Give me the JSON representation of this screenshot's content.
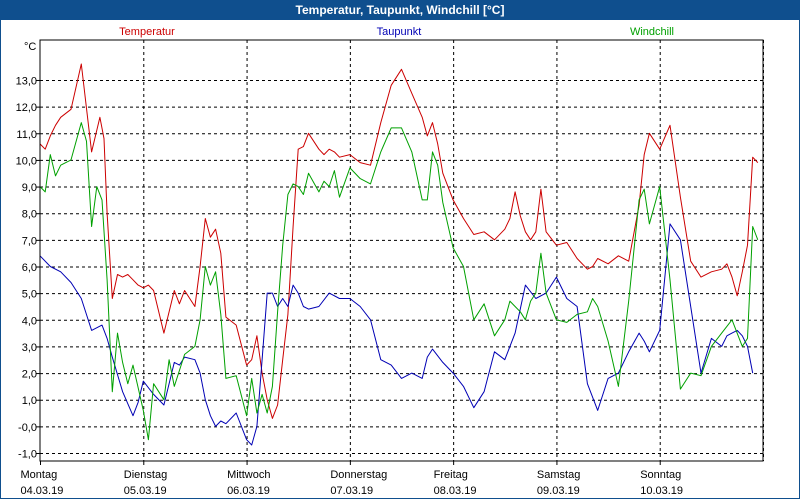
{
  "window": {
    "title": "Temperatur, Taupunkt, Windchill [°C]"
  },
  "chart_data": {
    "type": "line",
    "title": "Temperatur, Taupunkt, Windchill [°C]",
    "ylabel": "°C",
    "ylim": [
      -1.3,
      14.5
    ],
    "xlim": [
      0,
      7
    ],
    "grid": true,
    "yticks": [
      -1.0,
      0.0,
      1.0,
      2.0,
      3.0,
      4.0,
      5.0,
      6.0,
      7.0,
      8.0,
      9.0,
      10.0,
      11.0,
      12.0,
      13.0
    ],
    "ytick_labels": [
      "-1,0",
      "-0,0",
      "1,0",
      "2,0",
      "3,0",
      "4,0",
      "5,0",
      "6,0",
      "7,0",
      "8,0",
      "9,0",
      "10,0",
      "11,0",
      "12,0",
      "13,0"
    ],
    "days": [
      {
        "weekday": "Montag",
        "date": "04.03.19"
      },
      {
        "weekday": "Dienstag",
        "date": "05.03.19"
      },
      {
        "weekday": "Mittwoch",
        "date": "06.03.19"
      },
      {
        "weekday": "Donnerstag",
        "date": "07.03.19"
      },
      {
        "weekday": "Freitag",
        "date": "08.03.19"
      },
      {
        "weekday": "Samstag",
        "date": "09.03.19"
      },
      {
        "weekday": "Sonntag",
        "date": "10.03.19"
      }
    ],
    "series": [
      {
        "name": "Temperatur",
        "color": "#cc0000",
        "x": [
          0,
          0.05,
          0.1,
          0.15,
          0.2,
          0.3,
          0.4,
          0.5,
          0.58,
          0.62,
          0.65,
          0.7,
          0.75,
          0.8,
          0.85,
          0.9,
          0.95,
          1.0,
          1.05,
          1.1,
          1.2,
          1.3,
          1.35,
          1.4,
          1.5,
          1.55,
          1.6,
          1.65,
          1.7,
          1.75,
          1.8,
          1.9,
          2.0,
          2.05,
          2.1,
          2.15,
          2.2,
          2.25,
          2.3,
          2.35,
          2.4,
          2.45,
          2.5,
          2.55,
          2.6,
          2.7,
          2.75,
          2.8,
          2.85,
          2.9,
          3.0,
          3.1,
          3.2,
          3.3,
          3.4,
          3.5,
          3.6,
          3.7,
          3.75,
          3.8,
          3.85,
          3.9,
          4.0,
          4.1,
          4.2,
          4.3,
          4.4,
          4.5,
          4.55,
          4.6,
          4.65,
          4.7,
          4.75,
          4.8,
          4.85,
          4.9,
          5.0,
          5.1,
          5.2,
          5.3,
          5.35,
          5.4,
          5.5,
          5.6,
          5.7,
          5.8,
          5.85,
          5.9,
          6.0,
          6.1,
          6.2,
          6.3,
          6.4,
          6.5,
          6.6,
          6.65,
          6.7,
          6.75,
          6.8,
          6.85,
          6.9,
          6.95
        ],
        "values": [
          10.6,
          10.4,
          10.9,
          11.3,
          11.6,
          11.9,
          13.6,
          10.3,
          11.6,
          10.8,
          8.0,
          4.8,
          5.7,
          5.6,
          5.7,
          5.5,
          5.3,
          5.2,
          5.3,
          5.1,
          3.5,
          5.1,
          4.6,
          5.1,
          4.5,
          6.0,
          7.8,
          7.1,
          7.4,
          6.5,
          4.1,
          3.8,
          2.3,
          2.5,
          3.4,
          2.0,
          1.0,
          0.3,
          0.8,
          2.5,
          4.2,
          7.5,
          10.4,
          10.5,
          11.0,
          10.4,
          10.2,
          10.4,
          10.3,
          10.1,
          10.2,
          9.9,
          9.8,
          11.4,
          12.8,
          13.4,
          12.5,
          11.6,
          10.9,
          11.4,
          10.6,
          9.5,
          8.5,
          7.8,
          7.2,
          7.3,
          7.0,
          7.4,
          7.8,
          8.8,
          7.9,
          7.3,
          7.0,
          7.3,
          8.9,
          7.3,
          6.8,
          6.9,
          6.3,
          5.9,
          6.0,
          6.3,
          6.1,
          6.4,
          6.2,
          8.3,
          10.2,
          11.0,
          10.4,
          11.3,
          8.6,
          6.2,
          5.6,
          5.8,
          5.9,
          6.1,
          5.6,
          4.9,
          5.8,
          6.8,
          10.1,
          9.9
        ],
        "labels_text": "Temperatur"
      },
      {
        "name": "Taupunkt",
        "color": "#0000b4",
        "x": [
          0,
          0.1,
          0.2,
          0.3,
          0.4,
          0.5,
          0.6,
          0.65,
          0.7,
          0.8,
          0.9,
          0.95,
          1.0,
          1.1,
          1.2,
          1.3,
          1.35,
          1.4,
          1.5,
          1.55,
          1.6,
          1.65,
          1.7,
          1.75,
          1.8,
          1.9,
          2.0,
          2.05,
          2.1,
          2.15,
          2.2,
          2.25,
          2.3,
          2.35,
          2.4,
          2.45,
          2.5,
          2.55,
          2.6,
          2.7,
          2.8,
          2.9,
          3.0,
          3.1,
          3.2,
          3.3,
          3.4,
          3.5,
          3.6,
          3.7,
          3.75,
          3.8,
          3.9,
          4.0,
          4.1,
          4.2,
          4.3,
          4.4,
          4.5,
          4.6,
          4.7,
          4.8,
          4.9,
          5.0,
          5.1,
          5.2,
          5.3,
          5.4,
          5.5,
          5.6,
          5.7,
          5.8,
          5.85,
          5.9,
          6.0,
          6.1,
          6.2,
          6.3,
          6.4,
          6.5,
          6.6,
          6.65,
          6.7,
          6.75,
          6.8,
          6.85,
          6.9
        ],
        "values": [
          6.4,
          6.0,
          5.8,
          5.4,
          4.8,
          3.6,
          3.8,
          3.3,
          2.6,
          1.3,
          0.4,
          0.9,
          1.7,
          1.2,
          0.8,
          2.4,
          2.3,
          2.6,
          2.5,
          2.0,
          1.0,
          0.4,
          0.0,
          0.2,
          0.1,
          0.5,
          -0.5,
          -0.7,
          0.0,
          2.5,
          5.0,
          5.0,
          4.5,
          4.8,
          4.5,
          5.3,
          5.0,
          4.5,
          4.4,
          4.5,
          5.0,
          4.8,
          4.8,
          4.5,
          4.0,
          2.5,
          2.3,
          1.8,
          2.0,
          1.8,
          2.6,
          2.9,
          2.4,
          2.0,
          1.5,
          0.7,
          1.3,
          2.8,
          2.5,
          3.5,
          5.3,
          4.8,
          5.0,
          5.6,
          4.8,
          4.5,
          1.6,
          0.6,
          1.8,
          2.0,
          2.8,
          3.5,
          3.2,
          2.8,
          3.6,
          7.6,
          7.0,
          4.5,
          2.0,
          3.3,
          3.0,
          3.4,
          3.5,
          3.6,
          3.4,
          3.0,
          2.0
        ],
        "labels_text": "Taupunkt"
      },
      {
        "name": "Windchill",
        "color": "#00a000",
        "x": [
          0,
          0.05,
          0.1,
          0.15,
          0.2,
          0.3,
          0.4,
          0.45,
          0.5,
          0.55,
          0.6,
          0.65,
          0.7,
          0.75,
          0.8,
          0.85,
          0.9,
          1.0,
          1.05,
          1.1,
          1.2,
          1.25,
          1.3,
          1.4,
          1.5,
          1.55,
          1.6,
          1.65,
          1.7,
          1.75,
          1.8,
          1.9,
          2.0,
          2.05,
          2.1,
          2.15,
          2.2,
          2.25,
          2.3,
          2.35,
          2.4,
          2.45,
          2.5,
          2.55,
          2.6,
          2.7,
          2.75,
          2.8,
          2.85,
          2.9,
          3.0,
          3.1,
          3.2,
          3.3,
          3.4,
          3.5,
          3.6,
          3.7,
          3.75,
          3.8,
          3.85,
          3.9,
          4.0,
          4.1,
          4.2,
          4.3,
          4.4,
          4.5,
          4.55,
          4.6,
          4.65,
          4.7,
          4.75,
          4.8,
          4.85,
          4.9,
          5.0,
          5.1,
          5.2,
          5.3,
          5.35,
          5.4,
          5.5,
          5.6,
          5.7,
          5.8,
          5.85,
          5.9,
          6.0,
          6.1,
          6.2,
          6.3,
          6.4,
          6.5,
          6.6,
          6.7,
          6.8,
          6.85,
          6.9,
          6.95
        ],
        "values": [
          9.0,
          8.8,
          10.2,
          9.4,
          9.8,
          10.0,
          11.4,
          10.7,
          7.5,
          9.0,
          8.5,
          5.5,
          1.3,
          3.5,
          2.4,
          1.6,
          2.3,
          0.6,
          -0.5,
          1.6,
          1.0,
          2.5,
          1.5,
          2.7,
          3.0,
          4.0,
          6.0,
          5.3,
          5.8,
          4.2,
          1.8,
          1.9,
          0.4,
          1.8,
          0.5,
          1.2,
          0.5,
          1.5,
          4.3,
          6.8,
          8.7,
          9.1,
          9.0,
          8.7,
          9.5,
          8.8,
          9.2,
          9.0,
          9.6,
          8.6,
          9.7,
          9.3,
          9.1,
          10.3,
          11.2,
          11.2,
          10.3,
          8.5,
          8.5,
          10.3,
          9.8,
          8.4,
          6.7,
          6.0,
          4.0,
          4.6,
          3.4,
          4.0,
          4.7,
          4.5,
          4.3,
          4.0,
          4.7,
          5.0,
          6.5,
          5.0,
          4.0,
          3.9,
          4.2,
          4.3,
          4.8,
          4.5,
          3.2,
          1.5,
          4.7,
          8.5,
          8.9,
          7.6,
          9.0,
          5.5,
          1.4,
          2.0,
          1.9,
          3.0,
          3.5,
          4.0,
          3.0,
          3.3,
          7.5,
          7.0
        ],
        "labels_text": "Windchill"
      }
    ]
  }
}
